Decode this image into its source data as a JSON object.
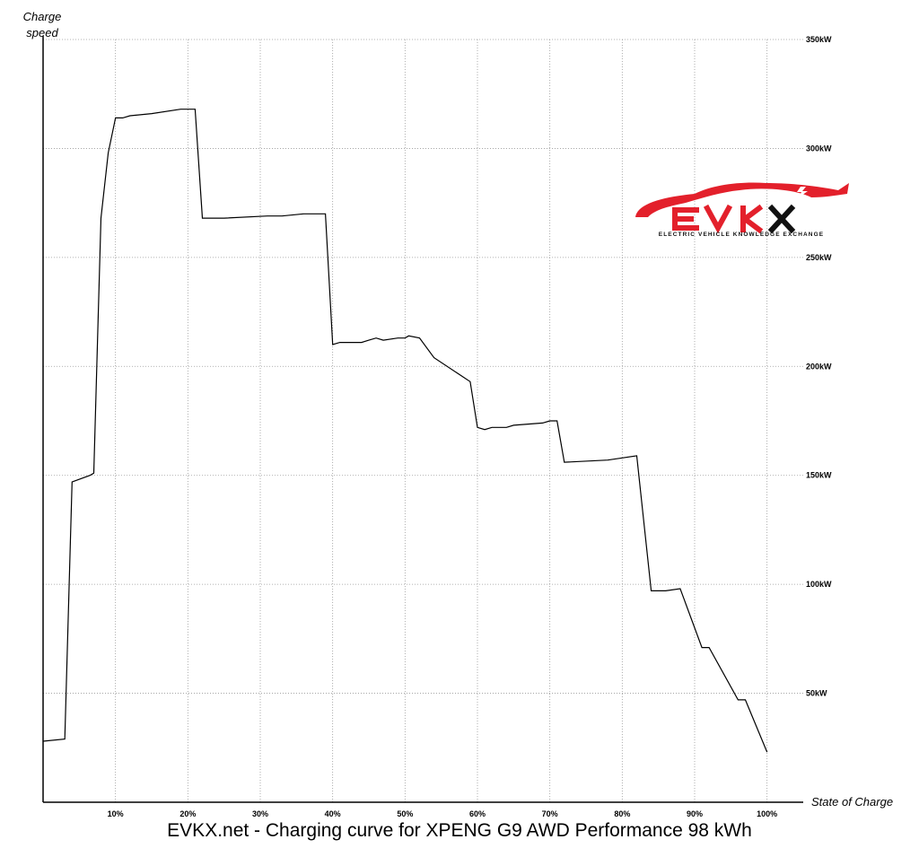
{
  "caption": "EVKX.net - Charging curve for XPENG G9 AWD Performance 98 kWh",
  "logo": {
    "wordmark": "EVKX",
    "tagline": "ELECTRIC VEHICLE KNOWLEDGE EXCHANGE",
    "color": "#e3202b"
  },
  "chart_data": {
    "type": "line",
    "title": "EVKX.net - Charging curve for XPENG G9 AWD Performance 98 kWh",
    "xlabel": "State of Charge",
    "ylabel": "Charge speed",
    "xlim": [
      0,
      105
    ],
    "ylim": [
      0,
      350
    ],
    "x_ticks": [
      "10%",
      "20%",
      "30%",
      "40%",
      "50%",
      "60%",
      "70%",
      "80%",
      "90%",
      "100%"
    ],
    "y_ticks": [
      "50kW",
      "100kW",
      "150kW",
      "200kW",
      "250kW",
      "300kW",
      "350kW"
    ],
    "y_axis_side": "right",
    "grid": true,
    "line_color": "#000000",
    "series": [
      {
        "x": [
          0,
          3,
          4,
          6.5,
          7,
          8,
          9,
          10,
          11,
          12,
          15,
          19,
          21,
          22,
          25,
          31,
          33,
          36,
          39,
          40,
          41,
          44,
          45,
          46,
          47,
          49,
          50,
          50.5,
          52,
          54,
          59,
          60,
          61,
          62,
          64,
          65,
          69,
          70,
          71,
          72,
          78,
          80,
          82,
          84,
          86,
          88,
          91,
          92,
          96,
          97,
          100
        ],
        "y": [
          28,
          29,
          147,
          150,
          151,
          268,
          298,
          314,
          314,
          315,
          316,
          318,
          318,
          268,
          268,
          269,
          269,
          270,
          270,
          210,
          211,
          211,
          212,
          213,
          212,
          213,
          213,
          214,
          213,
          204,
          193,
          172,
          171,
          172,
          172,
          173,
          174,
          175,
          175,
          156,
          157,
          158,
          159,
          97,
          97,
          98,
          71,
          71,
          47,
          47,
          23
        ]
      }
    ]
  }
}
